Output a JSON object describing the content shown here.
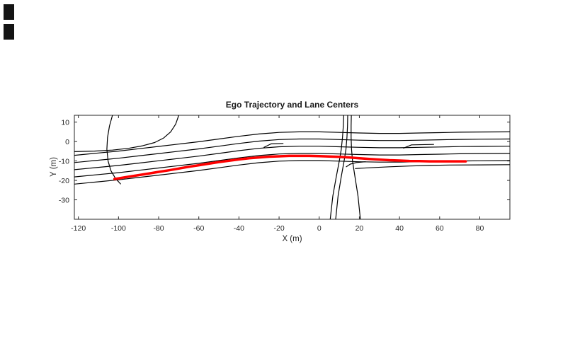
{
  "figure": {
    "background": "#ffffff",
    "corner_artifacts": {
      "count": 2,
      "color": "#141414"
    }
  },
  "chart_data": {
    "type": "line",
    "title": "Ego Trajectory and Lane Centers",
    "xlabel": "X (m)",
    "ylabel": "Y (m)",
    "xlim": [
      -122,
      95
    ],
    "ylim": [
      -40,
      13.5
    ],
    "xticks": [
      -120,
      -100,
      -80,
      -60,
      -40,
      -20,
      0,
      20,
      40,
      60,
      80
    ],
    "yticks": [
      -30,
      -20,
      -10,
      0,
      10
    ],
    "grid": false,
    "legend": null,
    "axis_color": "#262626",
    "lane_color": "#000000",
    "ego_color": "#ff0000",
    "series": [
      {
        "name": "lane-center-1",
        "color": "#000000",
        "width": 1.2,
        "points": [
          [
            -122,
            -7.1
          ],
          [
            -110,
            -5.9
          ],
          [
            -100,
            -4.9
          ],
          [
            -90,
            -3.7
          ],
          [
            -80,
            -2.5
          ],
          [
            -70,
            -1.3
          ],
          [
            -60,
            -0.1
          ],
          [
            -50,
            1.3
          ],
          [
            -40,
            2.7
          ],
          [
            -30,
            3.9
          ],
          [
            -20,
            4.7
          ],
          [
            -10,
            5.0
          ],
          [
            0,
            5.0
          ],
          [
            10,
            4.7
          ],
          [
            20,
            4.4
          ],
          [
            30,
            4.2
          ],
          [
            40,
            4.2
          ],
          [
            50,
            4.4
          ],
          [
            60,
            4.6
          ],
          [
            70,
            4.8
          ],
          [
            80,
            4.9
          ],
          [
            95,
            5.0
          ]
        ]
      },
      {
        "name": "lane-center-2",
        "color": "#000000",
        "width": 1.2,
        "points": [
          [
            -122,
            -10.8
          ],
          [
            -110,
            -9.6
          ],
          [
            -100,
            -8.6
          ],
          [
            -90,
            -7.4
          ],
          [
            -80,
            -6.2
          ],
          [
            -70,
            -5.0
          ],
          [
            -60,
            -3.8
          ],
          [
            -50,
            -2.4
          ],
          [
            -40,
            -1.0
          ],
          [
            -30,
            0.2
          ],
          [
            -20,
            1.0
          ],
          [
            -10,
            1.3
          ],
          [
            0,
            1.3
          ],
          [
            10,
            1.0
          ],
          [
            20,
            0.7
          ],
          [
            30,
            0.5
          ],
          [
            40,
            0.5
          ],
          [
            50,
            0.7
          ],
          [
            60,
            0.9
          ],
          [
            70,
            1.1
          ],
          [
            80,
            1.2
          ],
          [
            95,
            1.3
          ]
        ]
      },
      {
        "name": "lane-center-3",
        "color": "#000000",
        "width": 1.2,
        "points": [
          [
            -122,
            -14.5
          ],
          [
            -110,
            -13.3
          ],
          [
            -100,
            -12.3
          ],
          [
            -90,
            -11.1
          ],
          [
            -80,
            -9.9
          ],
          [
            -70,
            -8.7
          ],
          [
            -60,
            -7.5
          ],
          [
            -50,
            -6.1
          ],
          [
            -40,
            -4.7
          ],
          [
            -30,
            -3.5
          ],
          [
            -20,
            -2.7
          ],
          [
            -10,
            -2.4
          ],
          [
            0,
            -2.4
          ],
          [
            10,
            -2.7
          ],
          [
            20,
            -3.0
          ],
          [
            30,
            -3.2
          ],
          [
            40,
            -3.2
          ],
          [
            50,
            -3.0
          ],
          [
            60,
            -2.8
          ],
          [
            70,
            -2.6
          ],
          [
            80,
            -2.5
          ],
          [
            95,
            -2.4
          ]
        ]
      },
      {
        "name": "lane-center-4",
        "color": "#000000",
        "width": 1.2,
        "points": [
          [
            -122,
            -18.2
          ],
          [
            -110,
            -17.0
          ],
          [
            -100,
            -16.0
          ],
          [
            -90,
            -14.8
          ],
          [
            -80,
            -13.6
          ],
          [
            -70,
            -12.4
          ],
          [
            -60,
            -11.2
          ],
          [
            -50,
            -9.8
          ],
          [
            -40,
            -8.4
          ],
          [
            -30,
            -7.2
          ],
          [
            -20,
            -6.4
          ],
          [
            -10,
            -6.1
          ],
          [
            0,
            -6.1
          ],
          [
            10,
            -6.4
          ],
          [
            20,
            -6.7
          ],
          [
            30,
            -6.9
          ],
          [
            40,
            -6.9
          ],
          [
            50,
            -6.7
          ],
          [
            60,
            -6.5
          ],
          [
            70,
            -6.3
          ],
          [
            80,
            -6.2
          ],
          [
            95,
            -6.1
          ]
        ]
      },
      {
        "name": "lane-center-5",
        "color": "#000000",
        "width": 1.2,
        "points": [
          [
            -122,
            -21.9
          ],
          [
            -110,
            -20.7
          ],
          [
            -100,
            -19.7
          ],
          [
            -90,
            -18.5
          ],
          [
            -80,
            -17.3
          ],
          [
            -70,
            -16.1
          ],
          [
            -60,
            -14.9
          ],
          [
            -50,
            -13.5
          ],
          [
            -40,
            -12.1
          ],
          [
            -30,
            -10.9
          ],
          [
            -20,
            -10.1
          ],
          [
            -10,
            -9.8
          ],
          [
            0,
            -9.8
          ],
          [
            10,
            -10.1
          ],
          [
            20,
            -10.4
          ],
          [
            30,
            -10.6
          ],
          [
            40,
            -10.6
          ],
          [
            50,
            -10.4
          ],
          [
            60,
            -10.2
          ],
          [
            70,
            -10.0
          ],
          [
            80,
            -9.9
          ],
          [
            95,
            -9.8
          ]
        ]
      },
      {
        "name": "lane-center-6-right",
        "color": "#000000",
        "width": 1.2,
        "points": [
          [
            18,
            -13.9
          ],
          [
            25,
            -13.5
          ],
          [
            35,
            -13.0
          ],
          [
            45,
            -12.6
          ],
          [
            55,
            -12.3
          ],
          [
            65,
            -12.1
          ],
          [
            80,
            -12.0
          ],
          [
            95,
            -11.9
          ]
        ]
      },
      {
        "name": "ramp-curve-left",
        "color": "#000000",
        "width": 1.2,
        "points": [
          [
            -103,
            13.5
          ],
          [
            -104.5,
            8
          ],
          [
            -105.5,
            2
          ],
          [
            -105.8,
            -4
          ],
          [
            -105.2,
            -10
          ],
          [
            -103.8,
            -15
          ],
          [
            -101.5,
            -19
          ],
          [
            -99,
            -21.8
          ]
        ]
      },
      {
        "name": "arc-curve-left",
        "color": "#000000",
        "width": 1.2,
        "points": [
          [
            -70,
            13.5
          ],
          [
            -71.5,
            9
          ],
          [
            -74,
            5
          ],
          [
            -77.5,
            1.8
          ],
          [
            -82,
            -0.5
          ],
          [
            -88,
            -2.2
          ],
          [
            -95,
            -3.5
          ],
          [
            -103,
            -4.4
          ],
          [
            -112,
            -4.9
          ],
          [
            -122,
            -5.2
          ]
        ]
      },
      {
        "name": "cross-road-1",
        "color": "#000000",
        "width": 1.2,
        "points": [
          [
            5.5,
            -40
          ],
          [
            6.8,
            -28
          ],
          [
            8.5,
            -18
          ],
          [
            10,
            -10
          ],
          [
            11,
            -4
          ],
          [
            11.6,
            2
          ],
          [
            12,
            8
          ],
          [
            12.2,
            13.5
          ]
        ]
      },
      {
        "name": "cross-road-2",
        "color": "#000000",
        "width": 1.2,
        "points": [
          [
            8.2,
            -40
          ],
          [
            9.4,
            -28
          ],
          [
            11,
            -18
          ],
          [
            12.4,
            -10
          ],
          [
            13.3,
            -4
          ],
          [
            13.8,
            2
          ],
          [
            14.1,
            8
          ],
          [
            14.2,
            13.5
          ]
        ]
      },
      {
        "name": "cross-road-3",
        "color": "#000000",
        "width": 1.2,
        "points": [
          [
            20.5,
            -40
          ],
          [
            19.3,
            -28
          ],
          [
            17.8,
            -18
          ],
          [
            16.6,
            -10
          ],
          [
            16.1,
            -4
          ],
          [
            15.9,
            2
          ],
          [
            15.9,
            8
          ],
          [
            16,
            13.5
          ]
        ]
      },
      {
        "name": "turn-curve",
        "color": "#000000",
        "width": 1.2,
        "points": [
          [
            13.5,
            -13.0
          ],
          [
            15.5,
            -11.6
          ],
          [
            18.5,
            -10.8
          ],
          [
            23,
            -10.4
          ]
        ]
      },
      {
        "name": "lane-stub-1",
        "color": "#000000",
        "width": 1.2,
        "points": [
          [
            -27.5,
            -3.0
          ],
          [
            -24,
            -1.2
          ],
          [
            -18,
            -1.0
          ]
        ]
      },
      {
        "name": "lane-stub-2",
        "color": "#000000",
        "width": 1.2,
        "points": [
          [
            42,
            -3.4
          ],
          [
            46,
            -1.7
          ],
          [
            57,
            -1.5
          ]
        ]
      },
      {
        "name": "ego-trajectory",
        "color": "#ff0000",
        "width": 3.5,
        "points": [
          [
            -102,
            -19.3
          ],
          [
            -95,
            -18.1
          ],
          [
            -90,
            -17.3
          ],
          [
            -85,
            -16.5
          ],
          [
            -80,
            -15.6
          ],
          [
            -75,
            -14.8
          ],
          [
            -70,
            -13.9
          ],
          [
            -65,
            -13.0
          ],
          [
            -60,
            -12.2
          ],
          [
            -55,
            -11.4
          ],
          [
            -50,
            -10.6
          ],
          [
            -45,
            -9.9
          ],
          [
            -40,
            -9.2
          ],
          [
            -35,
            -8.6
          ],
          [
            -30,
            -8.2
          ],
          [
            -25,
            -7.8
          ],
          [
            -20,
            -7.6
          ],
          [
            -15,
            -7.4
          ],
          [
            -10,
            -7.4
          ],
          [
            -5,
            -7.4
          ],
          [
            0,
            -7.5
          ],
          [
            5,
            -7.7
          ],
          [
            10,
            -7.9
          ],
          [
            15,
            -8.2
          ],
          [
            20,
            -8.6
          ],
          [
            25,
            -9.0
          ],
          [
            30,
            -9.3
          ],
          [
            35,
            -9.6
          ],
          [
            40,
            -9.8
          ],
          [
            45,
            -10.0
          ],
          [
            50,
            -10.1
          ],
          [
            55,
            -10.2
          ],
          [
            60,
            -10.2
          ],
          [
            65,
            -10.2
          ],
          [
            70,
            -10.2
          ],
          [
            73,
            -10.2
          ]
        ]
      }
    ]
  }
}
